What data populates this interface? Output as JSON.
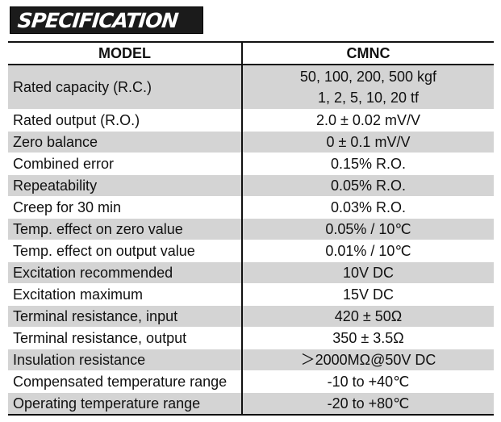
{
  "banner": {
    "title": "SPECIFICATION"
  },
  "table": {
    "headers": [
      "MODEL",
      "CMNC"
    ],
    "rows": [
      {
        "label": "Rated capacity (R.C.)",
        "values": [
          "50, 100, 200, 500 kgf",
          "1, 2, 5, 10, 20 tf"
        ],
        "shaded": true
      },
      {
        "label": "Rated output (R.O.)",
        "values": [
          "2.0 ± 0.02 mV/V"
        ],
        "shaded": false
      },
      {
        "label": "Zero balance",
        "values": [
          "0 ± 0.1 mV/V"
        ],
        "shaded": true
      },
      {
        "label": "Combined error",
        "values": [
          "0.15% R.O."
        ],
        "shaded": false
      },
      {
        "label": "Repeatability",
        "values": [
          "0.05% R.O."
        ],
        "shaded": true
      },
      {
        "label": "Creep for 30 min",
        "values": [
          "0.03% R.O."
        ],
        "shaded": false
      },
      {
        "label": "Temp. effect on zero value",
        "values": [
          "0.05% / 10℃"
        ],
        "shaded": true
      },
      {
        "label": "Temp. effect on output value",
        "values": [
          "0.01% / 10℃"
        ],
        "shaded": false
      },
      {
        "label": "Excitation recommended",
        "values": [
          "10V DC"
        ],
        "shaded": true
      },
      {
        "label": "Excitation maximum",
        "values": [
          "15V DC"
        ],
        "shaded": false
      },
      {
        "label": "Terminal resistance, input",
        "values": [
          "420 ± 50Ω"
        ],
        "shaded": true
      },
      {
        "label": "Terminal resistance, output",
        "values": [
          "350 ± 3.5Ω"
        ],
        "shaded": false
      },
      {
        "label": "Insulation resistance",
        "values": [
          "＞2000MΩ@50V DC"
        ],
        "shaded": true
      },
      {
        "label": "Compensated temperature range",
        "values": [
          "-10 to +40℃"
        ],
        "shaded": false
      },
      {
        "label": "Operating temperature range",
        "values": [
          "-20 to +80℃"
        ],
        "shaded": true
      }
    ]
  }
}
